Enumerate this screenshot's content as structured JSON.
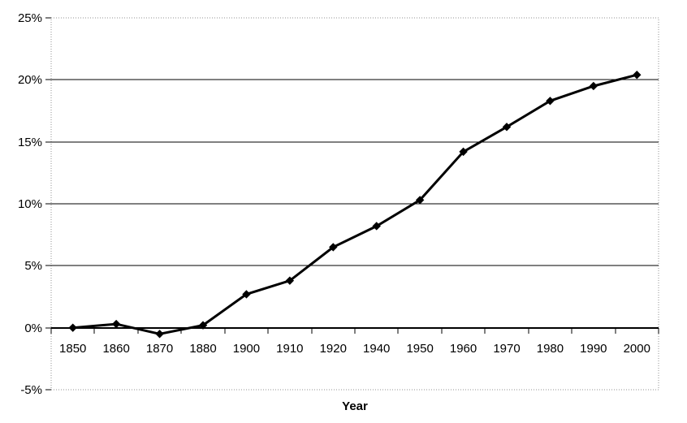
{
  "page": {
    "background_color": "#ffffff"
  },
  "chart_data": {
    "type": "line",
    "title": "",
    "xlabel": "Year",
    "ylabel": "",
    "categories": [
      "1850",
      "1860",
      "1870",
      "1880",
      "1900",
      "1910",
      "1920",
      "1940",
      "1950",
      "1960",
      "1970",
      "1980",
      "1990",
      "2000"
    ],
    "series": [
      {
        "name": "percent",
        "values": [
          0.0,
          0.3,
          -0.5,
          0.2,
          2.7,
          3.8,
          6.5,
          8.2,
          10.3,
          14.2,
          16.2,
          18.3,
          19.5,
          20.4
        ]
      }
    ],
    "ylim": [
      -5,
      25
    ],
    "yticks": [
      {
        "value": 25,
        "label": "25%"
      },
      {
        "value": 20,
        "label": "20%"
      },
      {
        "value": 15,
        "label": "15%"
      },
      {
        "value": 10,
        "label": "10%"
      },
      {
        "value": 5,
        "label": "5%"
      },
      {
        "value": 0,
        "label": "0%"
      },
      {
        "value": -5,
        "label": "-5%"
      }
    ],
    "gridline_values": [
      20,
      15,
      10,
      5
    ],
    "x_axis_at_value": 0,
    "legend": "none",
    "styles": {
      "line_color": "#000000",
      "line_width": 3,
      "marker": "diamond",
      "marker_color": "#000000",
      "gridline_color": "#000000",
      "axis_color": "#000000",
      "plot_border_style": "dotted",
      "plot_border_color": "#909090",
      "text_color": "#000000"
    }
  }
}
